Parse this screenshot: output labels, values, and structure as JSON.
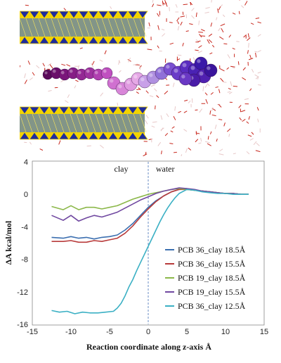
{
  "chart_data": {
    "type": "line",
    "xlabel": "Reaction coordinate along z-axis Å",
    "ylabel": "ΔA kcal/mol",
    "xlim": [
      -15,
      15
    ],
    "ylim": [
      -16,
      4
    ],
    "xticks": [
      -15,
      -10,
      -5,
      0,
      5,
      10,
      15
    ],
    "yticks": [
      4,
      0,
      -4,
      -8,
      -12,
      -16
    ],
    "regions": [
      {
        "label": "clay",
        "x": -3.5
      },
      {
        "label": "water",
        "x": 2.2
      }
    ],
    "divider_x": 0,
    "legend_position": "bottom-right",
    "series": [
      {
        "name": "PCB 36_clay 18.5Å",
        "color": "#3b6fb0",
        "x": [
          -12.5,
          -11,
          -10,
          -9,
          -8,
          -7,
          -6,
          -5,
          -4,
          -3,
          -2,
          -1,
          0,
          1,
          2,
          3,
          4,
          5,
          6,
          7,
          8,
          9,
          10,
          11,
          12,
          13
        ],
        "y": [
          -5.3,
          -5.4,
          -5.2,
          -5.4,
          -5.3,
          -5.5,
          -5.3,
          -5.2,
          -5.0,
          -4.4,
          -3.6,
          -2.6,
          -1.6,
          -0.8,
          -0.2,
          0.3,
          0.6,
          0.7,
          0.5,
          0.4,
          0.3,
          0.2,
          0.1,
          0.1,
          0.0,
          0.0
        ]
      },
      {
        "name": "PCB 36_clay 15.5Å",
        "color": "#b83a3a",
        "x": [
          -12.5,
          -11,
          -10,
          -9,
          -8,
          -7,
          -6,
          -5,
          -4,
          -3,
          -2,
          -1,
          0,
          1,
          2,
          3,
          4,
          5,
          6,
          7,
          8,
          9,
          10,
          11,
          12,
          13
        ],
        "y": [
          -5.8,
          -5.8,
          -5.7,
          -5.9,
          -5.9,
          -5.7,
          -5.8,
          -5.6,
          -5.4,
          -4.8,
          -3.9,
          -2.8,
          -1.8,
          -0.9,
          -0.2,
          0.3,
          0.6,
          0.6,
          0.5,
          0.4,
          0.3,
          0.2,
          0.1,
          0.1,
          0.0,
          0.0
        ]
      },
      {
        "name": "PCB 19_clay 18.5Å",
        "color": "#8cb84a",
        "x": [
          -12.5,
          -11,
          -10,
          -9,
          -8,
          -7,
          -6,
          -5,
          -4,
          -3,
          -2,
          -1,
          0,
          1,
          2,
          3,
          4,
          5,
          6,
          7,
          8,
          9,
          10,
          11,
          12,
          13
        ],
        "y": [
          -1.5,
          -1.9,
          -1.4,
          -1.9,
          -1.6,
          -1.6,
          -1.8,
          -1.6,
          -1.4,
          -1.0,
          -0.6,
          -0.3,
          0.0,
          0.2,
          0.4,
          0.6,
          0.7,
          0.6,
          0.5,
          0.4,
          0.3,
          0.2,
          0.1,
          0.1,
          0.0,
          0.0
        ]
      },
      {
        "name": "PCB 19_clay 15.5Å",
        "color": "#7048a0",
        "x": [
          -12.5,
          -11,
          -10,
          -9,
          -8,
          -7,
          -6,
          -5,
          -4,
          -3,
          -2,
          -1,
          0,
          1,
          2,
          3,
          4,
          5,
          6,
          7,
          8,
          9,
          10,
          11,
          12,
          13
        ],
        "y": [
          -2.6,
          -3.2,
          -2.6,
          -3.3,
          -2.9,
          -2.6,
          -2.8,
          -2.5,
          -2.2,
          -1.7,
          -1.2,
          -0.7,
          -0.3,
          0.1,
          0.4,
          0.6,
          0.8,
          0.7,
          0.6,
          0.4,
          0.3,
          0.2,
          0.1,
          0.1,
          0.0,
          0.0
        ]
      },
      {
        "name": "PCB 36_clay 12.5Å",
        "color": "#3bb0c4",
        "x": [
          -12.5,
          -11.5,
          -10.5,
          -9.5,
          -8.5,
          -7.5,
          -6.5,
          -5.5,
          -4.5,
          -4,
          -3.5,
          -3,
          -2.5,
          -2,
          -1.5,
          -1,
          -0.5,
          0,
          0.5,
          1,
          1.5,
          2,
          2.5,
          3,
          3.5,
          4,
          5,
          6,
          7,
          8,
          9,
          10,
          11,
          12,
          13
        ],
        "y": [
          -14.3,
          -14.5,
          -14.4,
          -14.7,
          -14.5,
          -14.6,
          -14.6,
          -14.5,
          -14.4,
          -14.0,
          -13.4,
          -12.5,
          -11.4,
          -10.5,
          -9.4,
          -8.4,
          -7.4,
          -6.4,
          -5.4,
          -4.4,
          -3.4,
          -2.5,
          -1.7,
          -1.0,
          -0.4,
          0.1,
          0.6,
          0.5,
          0.3,
          0.2,
          0.1,
          0.1,
          0.0,
          0.0,
          0.0
        ]
      }
    ]
  }
}
